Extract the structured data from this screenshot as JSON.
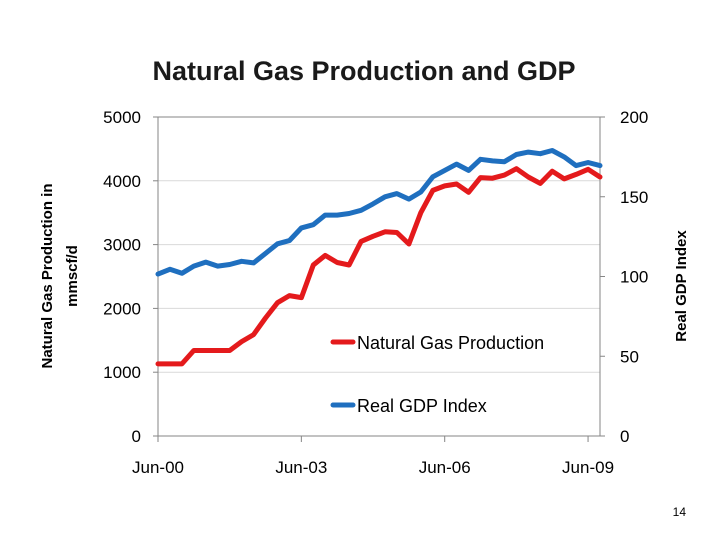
{
  "slide": {
    "page_number": "14"
  },
  "chart_data": {
    "type": "line",
    "title": "Natural Gas Production and GDP",
    "ylabel_left": [
      "Natural Gas Production in",
      "mmscf/d"
    ],
    "ylabel_right": "Real GDP Index",
    "ylim_left": [
      0,
      5000
    ],
    "ylim_right": [
      0,
      200
    ],
    "yticks_left": [
      0,
      1000,
      2000,
      3000,
      4000,
      5000
    ],
    "yticks_right": [
      0,
      50,
      100,
      150,
      200
    ],
    "x_start": 0,
    "x_end": 37,
    "xticks": [
      {
        "pos": 0,
        "label": "Jun-00"
      },
      {
        "pos": 12,
        "label": "Jun-03"
      },
      {
        "pos": 24,
        "label": "Jun-06"
      },
      {
        "pos": 36,
        "label": "Jun-09"
      }
    ],
    "series": [
      {
        "name": "Natural Gas Production",
        "axis": "left",
        "color": "#e41a1c",
        "values": [
          1130,
          1130,
          1130,
          1340,
          1340,
          1340,
          1340,
          1480,
          1590,
          1850,
          2090,
          2200,
          2170,
          2680,
          2830,
          2720,
          2680,
          3050,
          3130,
          3200,
          3190,
          3010,
          3500,
          3850,
          3920,
          3950,
          3820,
          4050,
          4040,
          4090,
          4190,
          4060,
          3960,
          4150,
          4030,
          4100,
          4180,
          4060
        ]
      },
      {
        "name": "Real GDP Index",
        "axis": "right",
        "color": "#1f6fbf",
        "values": [
          101.5,
          104.5,
          102.0,
          106.5,
          109.0,
          106.5,
          107.5,
          109.5,
          108.5,
          114.5,
          120.5,
          122.5,
          130.5,
          132.5,
          138.5,
          138.5,
          139.5,
          141.5,
          145.5,
          150.0,
          152.0,
          148.5,
          153.0,
          162.5,
          166.5,
          170.5,
          166.5,
          173.5,
          172.5,
          172.0,
          176.5,
          178.0,
          177.0,
          179.0,
          175.0,
          169.5,
          171.5,
          169.5
        ]
      }
    ],
    "legend": [
      {
        "label": "Natural Gas Production",
        "color": "#e41a1c"
      },
      {
        "label": "Real GDP Index",
        "color": "#1f6fbf"
      }
    ]
  }
}
